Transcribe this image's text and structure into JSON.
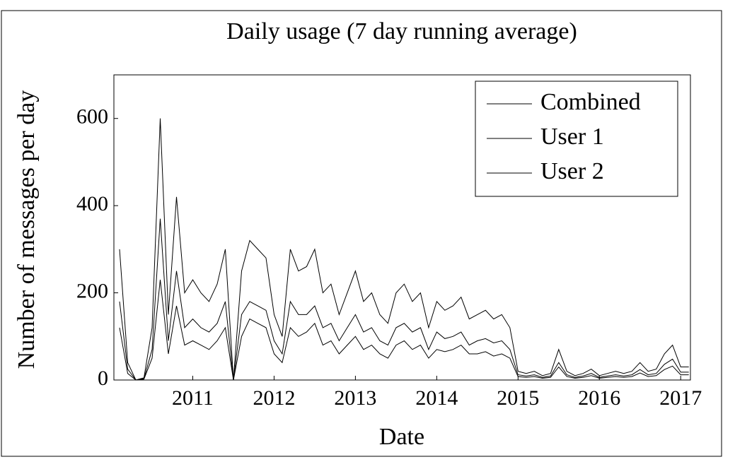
{
  "chart_data": {
    "type": "line",
    "title": "Daily usage (7 day running average)",
    "xlabel": "Date",
    "ylabel": "Number of messages per day",
    "x": [
      2010.1,
      2010.2,
      2010.3,
      2010.4,
      2010.5,
      2010.6,
      2010.7,
      2010.8,
      2010.9,
      2011.0,
      2011.1,
      2011.2,
      2011.3,
      2011.4,
      2011.5,
      2011.6,
      2011.7,
      2011.8,
      2011.9,
      2012.0,
      2012.1,
      2012.2,
      2012.3,
      2012.4,
      2012.5,
      2012.6,
      2012.7,
      2012.8,
      2012.9,
      2013.0,
      2013.1,
      2013.2,
      2013.3,
      2013.4,
      2013.5,
      2013.6,
      2013.7,
      2013.8,
      2013.9,
      2014.0,
      2014.1,
      2014.2,
      2014.3,
      2014.4,
      2014.5,
      2014.6,
      2014.7,
      2014.8,
      2014.9,
      2015.0,
      2015.1,
      2015.2,
      2015.3,
      2015.4,
      2015.5,
      2015.6,
      2015.7,
      2015.8,
      2015.9,
      2016.0,
      2016.1,
      2016.2,
      2016.3,
      2016.4,
      2016.5,
      2016.6,
      2016.7,
      2016.8,
      2016.9,
      2017.0,
      2017.1
    ],
    "series": [
      {
        "name": "Combined",
        "color": "#000000",
        "values": [
          300,
          40,
          0,
          5,
          120,
          600,
          150,
          420,
          200,
          230,
          200,
          180,
          220,
          300,
          0,
          250,
          320,
          300,
          280,
          150,
          100,
          300,
          250,
          260,
          300,
          200,
          220,
          150,
          200,
          250,
          180,
          200,
          150,
          130,
          200,
          220,
          180,
          200,
          120,
          180,
          160,
          170,
          190,
          140,
          150,
          160,
          140,
          150,
          120,
          20,
          15,
          20,
          10,
          15,
          70,
          20,
          10,
          15,
          25,
          10,
          15,
          20,
          15,
          20,
          40,
          20,
          25,
          60,
          80,
          30,
          30
        ]
      },
      {
        "name": "User 1",
        "color": "#000000",
        "values": [
          180,
          25,
          0,
          3,
          70,
          370,
          90,
          250,
          120,
          140,
          120,
          110,
          130,
          180,
          0,
          150,
          180,
          170,
          160,
          90,
          60,
          180,
          150,
          150,
          170,
          120,
          130,
          90,
          120,
          150,
          110,
          120,
          90,
          80,
          120,
          130,
          110,
          120,
          70,
          110,
          95,
          100,
          110,
          80,
          90,
          95,
          85,
          90,
          70,
          12,
          9,
          12,
          6,
          9,
          40,
          12,
          6,
          9,
          15,
          6,
          9,
          12,
          9,
          12,
          24,
          12,
          15,
          36,
          48,
          18,
          18
        ]
      },
      {
        "name": "User 2",
        "color": "#000000",
        "values": [
          120,
          15,
          0,
          2,
          50,
          230,
          60,
          170,
          80,
          90,
          80,
          70,
          90,
          120,
          0,
          100,
          140,
          130,
          120,
          60,
          40,
          120,
          100,
          110,
          130,
          80,
          90,
          60,
          80,
          100,
          70,
          80,
          60,
          50,
          80,
          90,
          70,
          80,
          50,
          70,
          65,
          70,
          80,
          60,
          60,
          65,
          55,
          60,
          50,
          8,
          6,
          8,
          4,
          6,
          30,
          8,
          4,
          6,
          10,
          4,
          6,
          8,
          6,
          8,
          16,
          8,
          10,
          24,
          32,
          12,
          12
        ]
      }
    ],
    "xlim": [
      2010.03,
      2017.12
    ],
    "xticks": [
      2011,
      2012,
      2013,
      2014,
      2015,
      2016,
      2017
    ],
    "ylim": [
      0,
      700
    ],
    "yticks": [
      0,
      200,
      400,
      600
    ],
    "legend": "upper right",
    "grid": false
  }
}
